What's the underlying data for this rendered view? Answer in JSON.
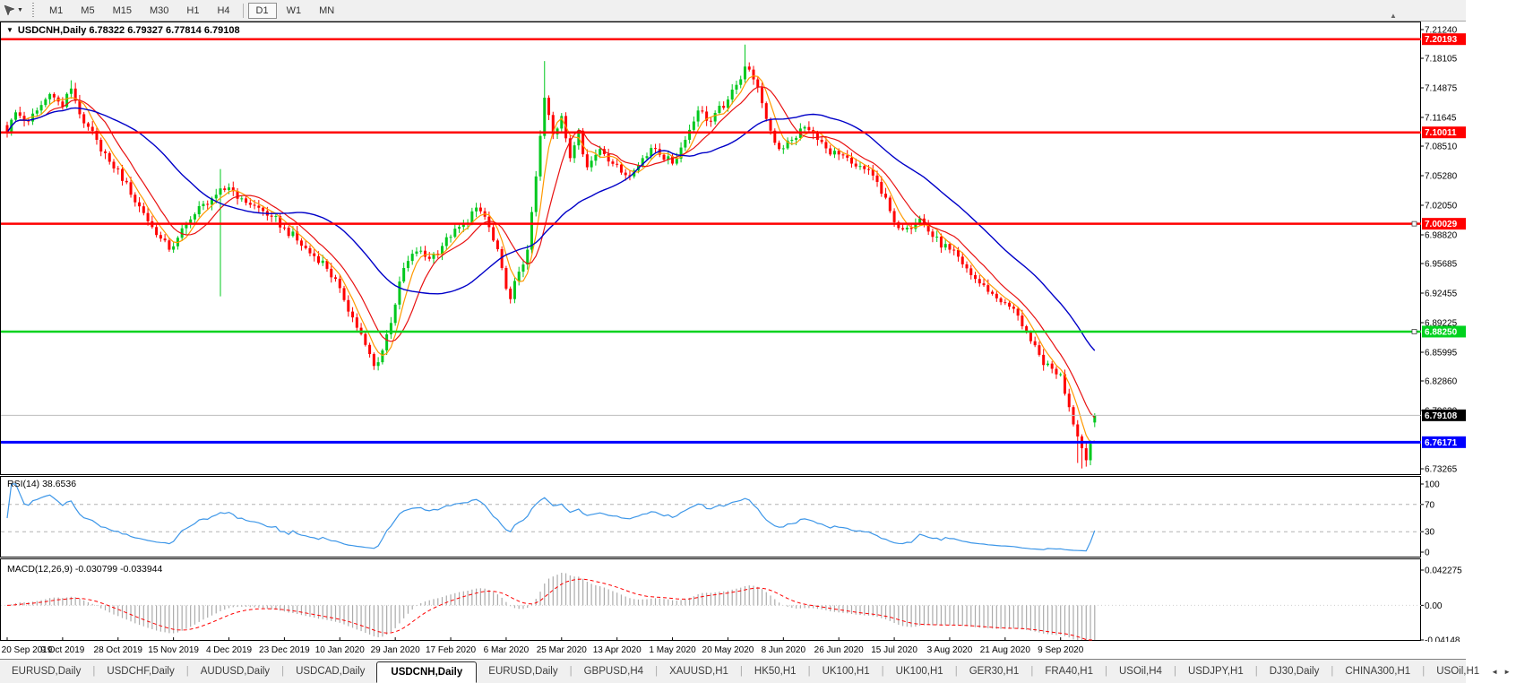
{
  "icons": {
    "cursor_tool": "➤",
    "dropdown": "▼",
    "symbol_dropdown": "▼",
    "shift_marker": "▲",
    "tab_scroll_left": "◄",
    "tab_scroll_right": "►"
  },
  "toolbar": {
    "timeframes": [
      "M1",
      "M5",
      "M15",
      "M30",
      "H1",
      "H4",
      "D1",
      "W1",
      "MN"
    ],
    "active_timeframe": "D1"
  },
  "chart_header": {
    "title": "USDCNH,Daily  6.78322 6.79327 6.77814 6.79108"
  },
  "indicators": {
    "rsi_label": "RSI(14) 38.6536",
    "macd_label": "MACD(12,26,9) -0.030799 -0.033944"
  },
  "colors": {
    "up": "#00C81E",
    "down": "#FF0000",
    "ma_fast": "#FF9900",
    "ma_mid": "#E81212",
    "ma_slow": "#0000C8",
    "rsi_line": "#3C96E8",
    "level_dash": "#B4B4B4",
    "macd_hist": "#ABABAB",
    "macd_signal": "#FF0000",
    "hline_red": "#FF0000",
    "hline_green": "#00D21E",
    "hline_blue": "#0000FF",
    "current_line": "#BDBDBD",
    "current_label_bg": "#000000",
    "panel_border": "#000000"
  },
  "price_axis": {
    "ticks": [
      "7.21240",
      "7.18105",
      "7.14875",
      "7.11645",
      "7.08510",
      "7.05280",
      "7.02050",
      "6.98820",
      "6.95685",
      "6.92455",
      "6.89225",
      "6.85995",
      "6.82860",
      "6.79630",
      "6.73265"
    ]
  },
  "rsi_axis": {
    "ticks": [
      "100",
      "70",
      "30",
      "0"
    ],
    "levels": [
      70,
      30
    ]
  },
  "macd_axis": {
    "ticks": [
      {
        "v": 0.042275,
        "label": "0.042275"
      },
      {
        "v": 0,
        "label": "0.00"
      },
      {
        "v": -0.04148,
        "label": "-0.04148"
      }
    ]
  },
  "hlines": [
    {
      "price": 7.20193,
      "label": "7.20193",
      "color": "#FF0000",
      "width": 2.5,
      "handle": false
    },
    {
      "price": 7.10011,
      "label": "7.10011",
      "color": "#FF0000",
      "width": 2.5,
      "handle": false
    },
    {
      "price": 7.00029,
      "label": "7.00029",
      "color": "#FF0000",
      "width": 2.5,
      "handle": true
    },
    {
      "price": 6.8825,
      "label": "6.88250",
      "color": "#00D21E",
      "width": 2.5,
      "handle": true
    },
    {
      "price": 6.76171,
      "label": "6.76171",
      "color": "#0000FF",
      "width": 3,
      "handle": false
    }
  ],
  "current_price": {
    "value": 6.79108,
    "label": "6.79108"
  },
  "date_axis": {
    "bars_per_label": 13,
    "labels": [
      "20 Sep 2019",
      "9 Oct 2019",
      "28 Oct 2019",
      "15 Nov 2019",
      "4 Dec 2019",
      "23 Dec 2019",
      "10 Jan 2020",
      "29 Jan 2020",
      "17 Feb 2020",
      "6 Mar 2020",
      "25 Mar 2020",
      "13 Apr 2020",
      "1 May 2020",
      "20 May 2020",
      "8 Jun 2020",
      "26 Jun 2020",
      "15 Jul 2020",
      "3 Aug 2020",
      "21 Aug 2020",
      "9 Sep 2020"
    ]
  },
  "tabs": {
    "items": [
      "EURUSD,Daily",
      "USDCHF,Daily",
      "AUDUSD,Daily",
      "USDCAD,Daily",
      "USDCNH,Daily",
      "EURUSD,Daily",
      "GBPUSD,H4",
      "XAUUSD,H1",
      "HK50,H1",
      "UK100,H1",
      "UK100,H1",
      "GER30,H1",
      "FRA40,H1",
      "USOil,H4",
      "USDJPY,H1",
      "DJ30,Daily",
      "CHINA300,H1",
      "USOil,H1"
    ],
    "active_index": 4
  },
  "chart_data": {
    "type": "candlestick",
    "symbol": "USDCNH",
    "timeframe": "Daily",
    "ohlc_current": {
      "open": 6.78322,
      "high": 6.79327,
      "low": 6.77814,
      "close": 6.79108
    },
    "ylim": [
      6.73265,
      7.2124
    ],
    "support_resistance": [
      7.20193,
      7.10011,
      7.00029,
      6.8825,
      6.76171
    ],
    "price_anchors": [
      [
        0,
        7.1
      ],
      [
        2,
        7.122
      ],
      [
        5,
        7.112
      ],
      [
        8,
        7.13
      ],
      [
        10,
        7.142
      ],
      [
        13,
        7.128
      ],
      [
        15,
        7.148
      ],
      [
        18,
        7.11
      ],
      [
        21,
        7.092
      ],
      [
        24,
        7.068
      ],
      [
        26,
        7.06
      ],
      [
        29,
        7.032
      ],
      [
        32,
        7.012
      ],
      [
        35,
        6.988
      ],
      [
        38,
        6.972
      ],
      [
        40,
        6.985
      ],
      [
        43,
        7.005
      ],
      [
        46,
        7.022
      ],
      [
        49,
        7.032
      ],
      [
        52,
        7.04
      ],
      [
        55,
        7.028
      ],
      [
        58,
        7.02
      ],
      [
        62,
        7.008
      ],
      [
        65,
        6.996
      ],
      [
        68,
        6.982
      ],
      [
        71,
        6.968
      ],
      [
        74,
        6.96
      ],
      [
        78,
        6.93
      ],
      [
        81,
        6.898
      ],
      [
        84,
        6.868
      ],
      [
        86,
        6.845
      ],
      [
        88,
        6.862
      ],
      [
        91,
        6.912
      ],
      [
        93,
        6.952
      ],
      [
        96,
        6.97
      ],
      [
        99,
        6.962
      ],
      [
        102,
        6.976
      ],
      [
        104,
        6.986
      ],
      [
        107,
        7.0
      ],
      [
        110,
        7.018
      ],
      [
        112,
        7.008
      ],
      [
        114,
        6.982
      ],
      [
        116,
        6.952
      ],
      [
        118,
        6.918
      ],
      [
        120,
        6.948
      ],
      [
        122,
        6.972
      ],
      [
        124,
        7.052
      ],
      [
        126,
        7.138
      ],
      [
        128,
        7.098
      ],
      [
        130,
        7.118
      ],
      [
        132,
        7.072
      ],
      [
        134,
        7.102
      ],
      [
        136,
        7.062
      ],
      [
        139,
        7.082
      ],
      [
        143,
        7.065
      ],
      [
        146,
        7.052
      ],
      [
        149,
        7.072
      ],
      [
        152,
        7.082
      ],
      [
        156,
        7.066
      ],
      [
        159,
        7.092
      ],
      [
        162,
        7.124
      ],
      [
        165,
        7.112
      ],
      [
        169,
        7.136
      ],
      [
        171,
        7.152
      ],
      [
        173,
        7.172
      ],
      [
        175,
        7.158
      ],
      [
        177,
        7.132
      ],
      [
        179,
        7.102
      ],
      [
        181,
        7.082
      ],
      [
        184,
        7.092
      ],
      [
        187,
        7.106
      ],
      [
        190,
        7.092
      ],
      [
        193,
        7.076
      ],
      [
        195,
        7.076
      ],
      [
        198,
        7.066
      ],
      [
        201,
        7.06
      ],
      [
        204,
        7.046
      ],
      [
        208,
        7.002
      ],
      [
        211,
        6.996
      ],
      [
        214,
        7.006
      ],
      [
        217,
        6.986
      ],
      [
        221,
        6.972
      ],
      [
        224,
        6.956
      ],
      [
        227,
        6.94
      ],
      [
        230,
        6.926
      ],
      [
        234,
        6.914
      ],
      [
        237,
        6.9
      ],
      [
        240,
        6.872
      ],
      [
        243,
        6.846
      ],
      [
        247,
        6.836
      ],
      [
        249,
        6.8
      ],
      [
        251,
        6.768
      ],
      [
        253,
        6.742
      ],
      [
        254,
        6.76
      ],
      [
        255,
        6.79108
      ]
    ],
    "wick_overrides": {
      "15": [
        7.157,
        null
      ],
      "50": [
        7.06,
        6.921
      ],
      "126": [
        7.178,
        null
      ],
      "173": [
        7.196,
        null
      ],
      "251": [
        null,
        6.739
      ],
      "252": [
        null,
        6.733
      ],
      "253": [
        null,
        6.735
      ]
    },
    "indicators": {
      "ma_periods": [
        5,
        10,
        30
      ],
      "rsi_period": 14,
      "rsi_last": 38.6536,
      "macd_params": [
        12,
        26,
        9
      ],
      "macd_last": [
        -0.030799,
        -0.033944
      ],
      "macd_range": [
        0.042275,
        -0.04148
      ]
    }
  }
}
